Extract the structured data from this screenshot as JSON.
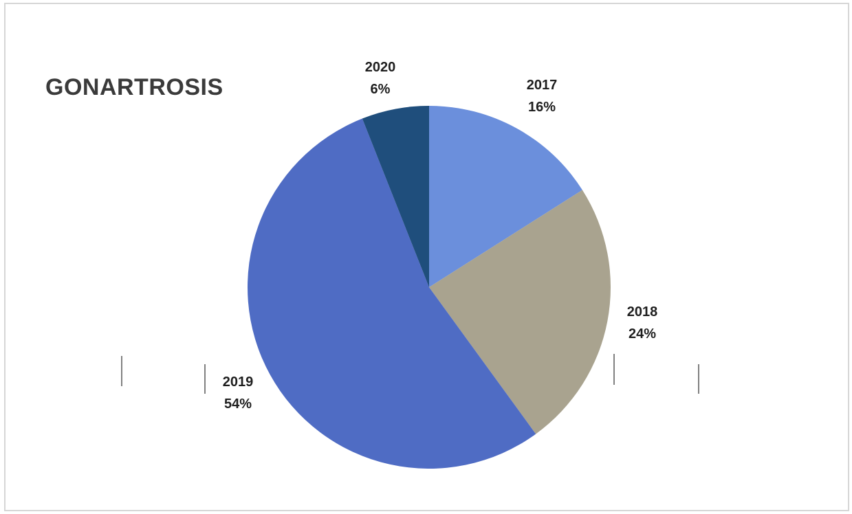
{
  "chart_data": {
    "type": "pie",
    "title": "GONARTROSIS",
    "slices": [
      {
        "label": "2017",
        "value": 16,
        "value_label": "16%",
        "color": "#6b8fdc"
      },
      {
        "label": "2018",
        "value": 24,
        "value_label": "24%",
        "color": "#a9a38f"
      },
      {
        "label": "2019",
        "value": 54,
        "value_label": "54%",
        "color": "#4f6cc4"
      },
      {
        "label": "2020",
        "value": 6,
        "value_label": "6%",
        "color": "#1f4e7c"
      }
    ],
    "start_angle_deg": 0,
    "direction": "clockwise",
    "legend": "none",
    "data_labels": "outside"
  }
}
